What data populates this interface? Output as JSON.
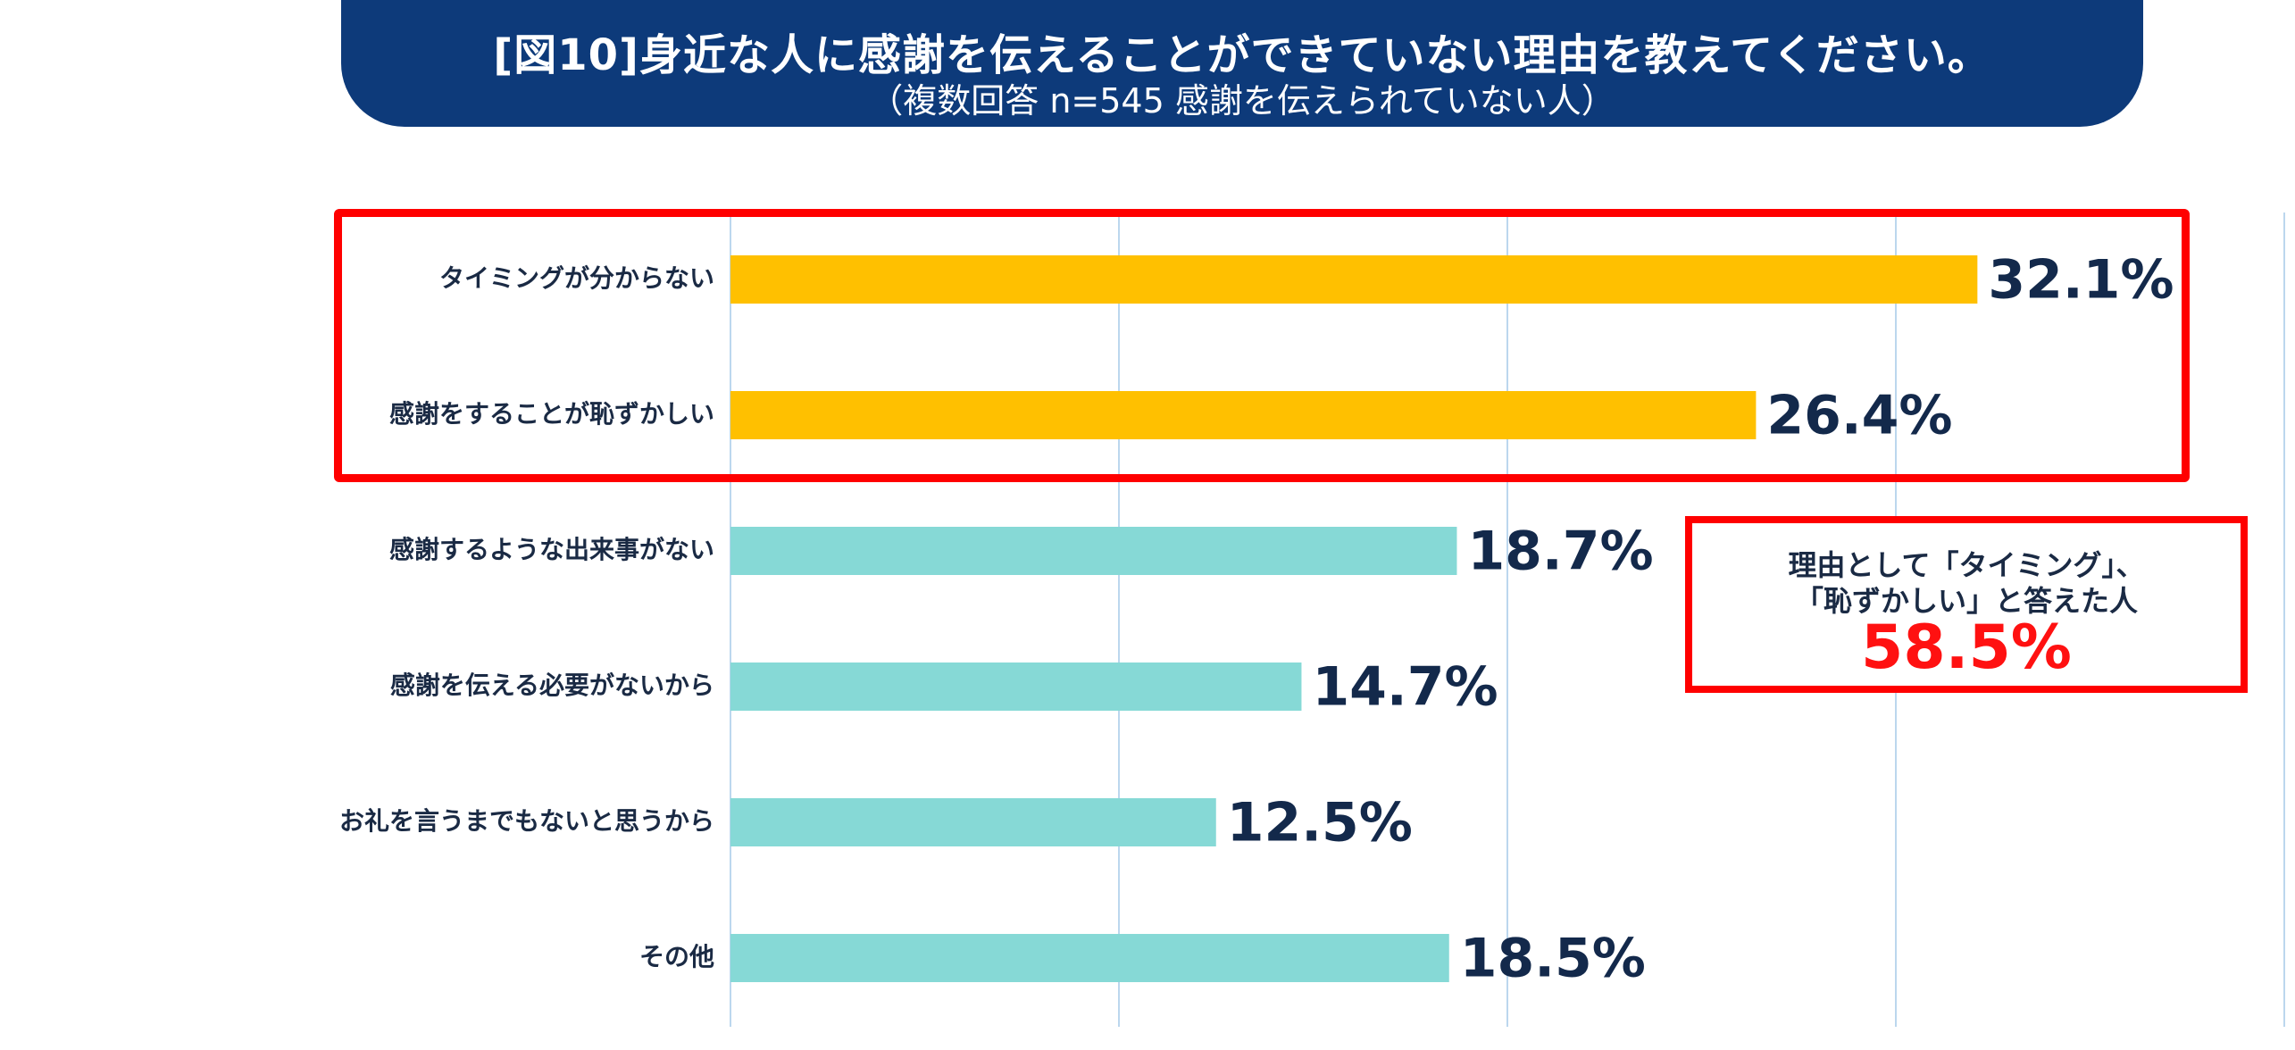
{
  "title": {
    "main": "[図10]身近な人に感謝を伝えることができていない理由を教えてください。",
    "sub": "（複数回答 n=545 感謝を伝えられていない人）"
  },
  "colors": {
    "banner": "#0d3a7a",
    "highlight_bar": "#ffc000",
    "normal_bar": "#86d9d6",
    "grid": "#bcd7ee",
    "highlight_border": "#ff0000",
    "callout_value": "#ff1111"
  },
  "chart_data": {
    "type": "bar",
    "orientation": "horizontal",
    "title": "[図10]身近な人に感謝を伝えることができていない理由を教えてください。",
    "subtitle": "（複数回答 n=545 感謝を伝えられていない人）",
    "categories": [
      "タイミングが分からない",
      "感謝をすることが恥ずかしい",
      "感謝するような出来事がない",
      "感謝を伝える必要がないから",
      "お礼を言うまでもないと思うから",
      "その他"
    ],
    "values": [
      32.1,
      26.4,
      18.7,
      14.7,
      12.5,
      18.5
    ],
    "value_labels": [
      "32.1%",
      "26.4%",
      "18.7%",
      "14.7%",
      "12.5%",
      "18.5%"
    ],
    "highlighted": [
      true,
      true,
      false,
      false,
      false,
      false
    ],
    "unit": "%",
    "xlim": [
      0,
      40
    ],
    "grid": true,
    "legend": "none"
  },
  "callout": {
    "line1": "理由として「タイミング」、",
    "line2": "「恥ずかしい」と答えた人",
    "value": "58.5%"
  }
}
